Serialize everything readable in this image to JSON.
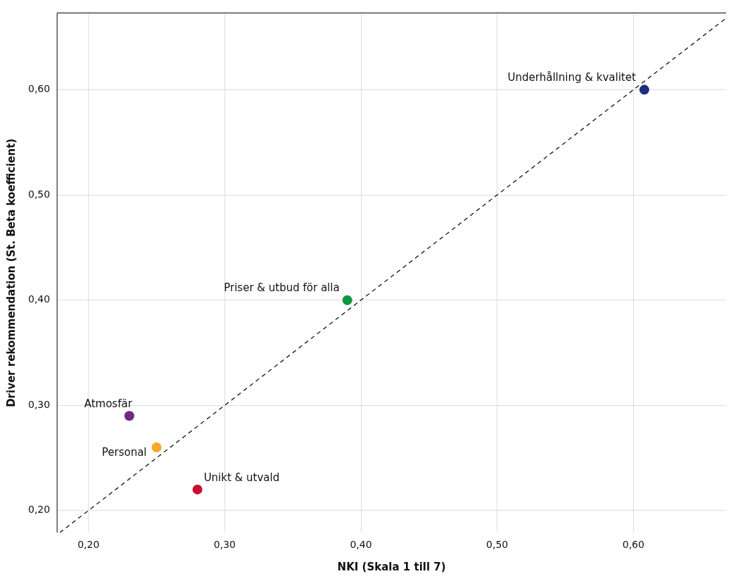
{
  "chart_data": {
    "type": "scatter",
    "xlabel": "NKI (Skala 1 till 7)",
    "ylabel": "Driver rekommendation (St. Beta koefficient)",
    "xlim": [
      0.177,
      0.668
    ],
    "ylim": [
      0.179,
      0.673
    ],
    "xticks": [
      {
        "value": 0.2,
        "label": "0,20"
      },
      {
        "value": 0.3,
        "label": "0,30"
      },
      {
        "value": 0.4,
        "label": "0,40"
      },
      {
        "value": 0.5,
        "label": "0,50"
      },
      {
        "value": 0.6,
        "label": "0,60"
      }
    ],
    "yticks": [
      {
        "value": 0.2,
        "label": "0,20"
      },
      {
        "value": 0.3,
        "label": "0,30"
      },
      {
        "value": 0.4,
        "label": "0,40"
      },
      {
        "value": 0.5,
        "label": "0,50"
      },
      {
        "value": 0.6,
        "label": "0,60"
      }
    ],
    "grid": true,
    "legend": false,
    "marker": "circle",
    "series": [
      {
        "name": "Underhållning & kvalitet",
        "color": "#1f2d7b",
        "x": [
          0.608
        ],
        "values": [
          0.6
        ]
      },
      {
        "name": "Priser & utbud för alla",
        "color": "#10973c",
        "x": [
          0.39
        ],
        "values": [
          0.4
        ]
      },
      {
        "name": "Atmosfär",
        "color": "#6b2a86",
        "x": [
          0.23
        ],
        "values": [
          0.29
        ]
      },
      {
        "name": "Personal",
        "color": "#f5a92c",
        "x": [
          0.25
        ],
        "values": [
          0.26
        ]
      },
      {
        "name": "Unikt & utvald",
        "color": "#c8102e",
        "x": [
          0.28
        ],
        "values": [
          0.22
        ]
      },
      {
        "type": "line",
        "color": "#000000",
        "line_style": "dashed",
        "marker": "none",
        "x": [
          0.179,
          0.668
        ],
        "values": [
          0.179,
          0.668
        ]
      }
    ]
  }
}
